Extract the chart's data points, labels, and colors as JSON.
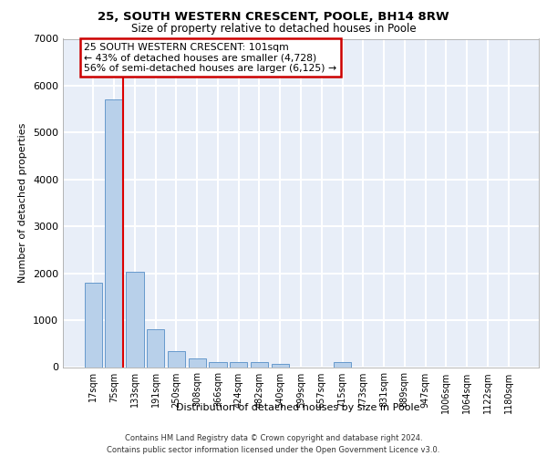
{
  "title1": "25, SOUTH WESTERN CRESCENT, POOLE, BH14 8RW",
  "title2": "Size of property relative to detached houses in Poole",
  "xlabel": "Distribution of detached houses by size in Poole",
  "ylabel": "Number of detached properties",
  "categories": [
    "17sqm",
    "75sqm",
    "133sqm",
    "191sqm",
    "250sqm",
    "308sqm",
    "366sqm",
    "424sqm",
    "482sqm",
    "540sqm",
    "599sqm",
    "657sqm",
    "715sqm",
    "773sqm",
    "831sqm",
    "889sqm",
    "947sqm",
    "1006sqm",
    "1064sqm",
    "1122sqm",
    "1180sqm"
  ],
  "values": [
    1790,
    5700,
    2030,
    810,
    340,
    185,
    110,
    100,
    100,
    75,
    0,
    0,
    100,
    0,
    0,
    0,
    0,
    0,
    0,
    0,
    0
  ],
  "bar_color": "#b8d0ea",
  "bar_edge_color": "#6699cc",
  "red_line_color": "#dd0000",
  "red_line_x": 1.42,
  "annotation_title": "25 SOUTH WESTERN CRESCENT: 101sqm",
  "annotation_line2": "← 43% of detached houses are smaller (4,728)",
  "annotation_line3": "56% of semi-detached houses are larger (6,125) →",
  "annotation_box_facecolor": "#ffffff",
  "annotation_box_edgecolor": "#cc0000",
  "ylim": [
    0,
    7000
  ],
  "yticks": [
    0,
    1000,
    2000,
    3000,
    4000,
    5000,
    6000,
    7000
  ],
  "bg_color": "#e8eef8",
  "grid_color": "#ffffff",
  "footer1": "Contains HM Land Registry data © Crown copyright and database right 2024.",
  "footer2": "Contains public sector information licensed under the Open Government Licence v3.0."
}
